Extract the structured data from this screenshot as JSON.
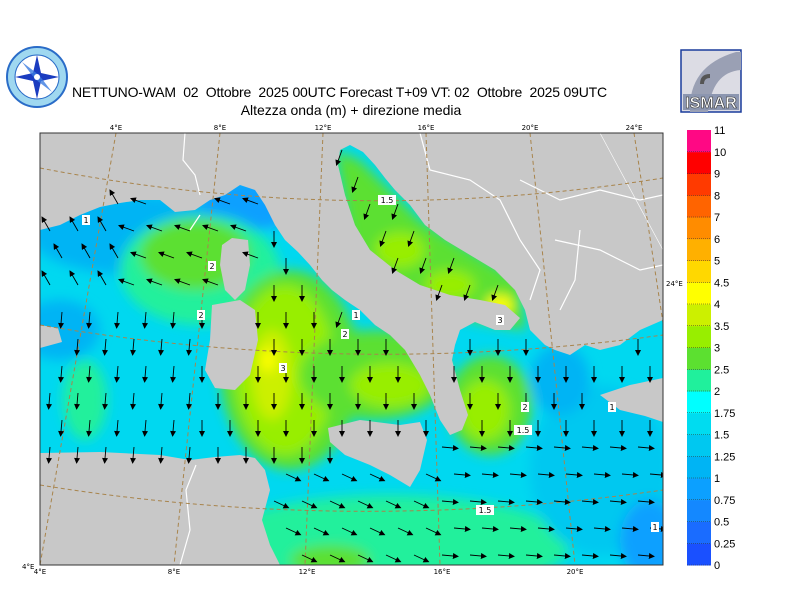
{
  "header": {
    "title": "NETTUNO-WAM  02  Ottobre  2025 00UTC Forecast T+09 VT: 02  Ottobre  2025 09UTC",
    "subtitle": "Altezza onda (m) + direzione media",
    "left_logo": "Aeronautica Militare Servizio Meteorologico logo",
    "right_logo": "ISMAR"
  },
  "map": {
    "top_lon_labels": [
      "4°E",
      "8°E",
      "12°E",
      "16°E",
      "20°E",
      "24°E"
    ],
    "bottom_lon_labels": [
      "4°E",
      "8°E",
      "12°E",
      "16°E",
      "20°E"
    ],
    "left_corner_label": "4°E",
    "right_edge_label": "24°E",
    "contour_labels": [
      "1",
      "2",
      "2",
      "1.5",
      "1",
      "2",
      "3",
      "3",
      "2",
      "1.5",
      "1.5",
      "1",
      "1"
    ],
    "colors": {
      "land": "#c8c8c8",
      "borders": "#ffffff",
      "grid": "#a8844c",
      "arrows": "#000000"
    }
  },
  "colorbar": {
    "labels": [
      "0",
      "0.25",
      "0.5",
      "0.75",
      "1",
      "1.25",
      "1.5",
      "1.75",
      "2",
      "2.5",
      "3",
      "3.5",
      "4",
      "4.5",
      "5",
      "6",
      "7",
      "8",
      "9",
      "10",
      "11"
    ],
    "colors": [
      "#1a50ff",
      "#1a6cff",
      "#1488ff",
      "#0ca0ff",
      "#00b4f4",
      "#00c8f0",
      "#00dcf0",
      "#00ffff",
      "#20f09c",
      "#5ce030",
      "#98ee00",
      "#ccf000",
      "#ffff00",
      "#ffd800",
      "#ffb000",
      "#ff8c00",
      "#ff6400",
      "#ff3a00",
      "#ff0000",
      "#ff0884",
      "#ff00c0"
    ]
  }
}
